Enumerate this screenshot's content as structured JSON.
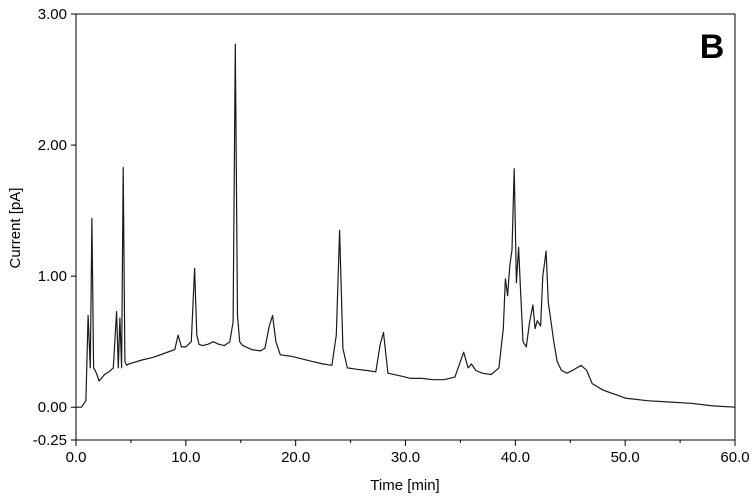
{
  "chart_data": {
    "type": "line",
    "title": "",
    "panel_label": "B",
    "xlabel": "Time [min]",
    "ylabel": "Current [pA]",
    "xlim": [
      0,
      60
    ],
    "ylim": [
      -0.25,
      3.0
    ],
    "x_ticks": [
      0,
      10,
      20,
      30,
      40,
      50,
      60
    ],
    "x_tick_labels": [
      "0.0",
      "10.0",
      "20.0",
      "30.0",
      "40.0",
      "50.0",
      "60.0"
    ],
    "y_ticks": [
      -0.25,
      0,
      1,
      2,
      3
    ],
    "y_tick_labels": [
      "-0.25",
      "0.00",
      "1.00",
      "2.00",
      "3.00"
    ],
    "grid": false,
    "line_color": "#1a1a1a",
    "series": [
      {
        "x": [
          0.0,
          0.5,
          0.9,
          1.1,
          1.3,
          1.45,
          1.6,
          1.75,
          1.9,
          2.1,
          2.3,
          2.6,
          3.0,
          3.4,
          3.7,
          3.85,
          4.0,
          4.15,
          4.3,
          4.45,
          4.6,
          4.8,
          5.2,
          6.0,
          7.0,
          8.0,
          9.0,
          9.3,
          9.6,
          10.0,
          10.5,
          10.8,
          11.0,
          11.2,
          11.5,
          12.0,
          12.5,
          13.0,
          13.5,
          14.0,
          14.3,
          14.5,
          14.7,
          14.9,
          15.2,
          16.0,
          16.8,
          17.2,
          17.6,
          17.9,
          18.2,
          18.6,
          19.5,
          20.5,
          21.5,
          22.5,
          23.3,
          23.7,
          24.0,
          24.3,
          24.7,
          25.5,
          26.5,
          27.3,
          27.7,
          28.0,
          28.4,
          29.5,
          30.5,
          31.5,
          32.5,
          33.5,
          34.5,
          35.0,
          35.3,
          35.7,
          36.0,
          36.4,
          37.0,
          37.8,
          38.5,
          38.9,
          39.1,
          39.3,
          39.5,
          39.7,
          39.9,
          40.1,
          40.3,
          40.5,
          40.7,
          41.0,
          41.3,
          41.6,
          41.8,
          42.0,
          42.3,
          42.5,
          42.8,
          43.0,
          43.2,
          43.5,
          43.8,
          44.2,
          44.7,
          45.2,
          45.6,
          46.0,
          46.5,
          47.0,
          48.0,
          49.0,
          50.0,
          52.0,
          54.0,
          56.0,
          58.0,
          60.0
        ],
        "y": [
          0.0,
          0.0,
          0.05,
          0.7,
          0.3,
          1.44,
          0.3,
          0.28,
          0.25,
          0.2,
          0.22,
          0.25,
          0.27,
          0.3,
          0.73,
          0.3,
          0.68,
          0.3,
          1.83,
          0.35,
          0.32,
          0.33,
          0.34,
          0.36,
          0.38,
          0.41,
          0.44,
          0.55,
          0.46,
          0.46,
          0.5,
          1.06,
          0.55,
          0.48,
          0.47,
          0.48,
          0.5,
          0.48,
          0.47,
          0.5,
          0.65,
          2.77,
          0.7,
          0.5,
          0.47,
          0.44,
          0.43,
          0.45,
          0.62,
          0.7,
          0.5,
          0.4,
          0.39,
          0.37,
          0.35,
          0.33,
          0.32,
          0.55,
          1.35,
          0.45,
          0.3,
          0.29,
          0.28,
          0.27,
          0.48,
          0.57,
          0.26,
          0.24,
          0.22,
          0.22,
          0.21,
          0.21,
          0.23,
          0.35,
          0.42,
          0.3,
          0.33,
          0.28,
          0.26,
          0.25,
          0.3,
          0.6,
          0.98,
          0.85,
          1.08,
          1.2,
          1.82,
          0.95,
          1.22,
          0.85,
          0.5,
          0.46,
          0.65,
          0.78,
          0.6,
          0.66,
          0.62,
          1.0,
          1.19,
          0.8,
          0.68,
          0.5,
          0.35,
          0.28,
          0.26,
          0.28,
          0.3,
          0.32,
          0.28,
          0.18,
          0.13,
          0.1,
          0.07,
          0.05,
          0.04,
          0.03,
          0.01,
          0.0
        ]
      }
    ]
  }
}
